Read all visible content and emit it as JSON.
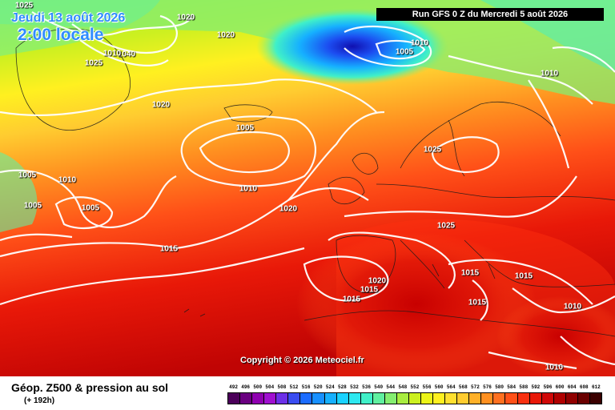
{
  "header": {
    "date": "Jeudi 13 août 2026",
    "local_time": "2:00 locale",
    "run": "Run GFS 0 Z du Mercredi 5 août 2026"
  },
  "copyright": "Copyright © 2026 Meteociel.fr",
  "footer": {
    "title": "Géop. Z500 & pression au sol",
    "forecast_hour": "(+ 192h)"
  },
  "isobar_labels": [
    {
      "text": "1025"
    },
    {
      "text": "1020"
    },
    {
      "text": "1020"
    },
    {
      "text": "1025"
    },
    {
      "text": "1040"
    },
    {
      "text": "1020"
    },
    {
      "text": "1010"
    },
    {
      "text": "1005"
    },
    {
      "text": "1010"
    },
    {
      "text": "1005"
    },
    {
      "text": "1010"
    },
    {
      "text": "1025"
    },
    {
      "text": "1005"
    },
    {
      "text": "1010"
    },
    {
      "text": "1005"
    },
    {
      "text": "1010"
    },
    {
      "text": "1005"
    },
    {
      "text": "1020"
    },
    {
      "text": "1025"
    },
    {
      "text": "1015"
    },
    {
      "text": "1020"
    },
    {
      "text": "1015"
    },
    {
      "text": "1015"
    },
    {
      "text": "1015"
    },
    {
      "text": "1015"
    },
    {
      "text": "1015"
    },
    {
      "text": "1010"
    },
    {
      "text": "1010"
    }
  ],
  "scale": {
    "labels": [
      "492",
      "496",
      "500",
      "504",
      "508",
      "512",
      "516",
      "520",
      "524",
      "528",
      "532",
      "536",
      "540",
      "544",
      "548",
      "552",
      "556",
      "560",
      "564",
      "568",
      "572",
      "576",
      "580",
      "584",
      "588",
      "592",
      "596",
      "600",
      "604",
      "608",
      "612"
    ],
    "colors": [
      "#4b0059",
      "#6a0080",
      "#8f00b0",
      "#a010d0",
      "#6c30e8",
      "#3a4cf0",
      "#1c6cff",
      "#1890ff",
      "#16b0ff",
      "#1ad2ff",
      "#2ee8f0",
      "#40f0c8",
      "#60f0a0",
      "#84ee70",
      "#a8ec40",
      "#ccf020",
      "#ecf418",
      "#fff020",
      "#ffe030",
      "#ffcc30",
      "#ffb028",
      "#ff9020",
      "#ff7020",
      "#ff5018",
      "#f83010",
      "#e81808",
      "#d00808",
      "#b00000",
      "#900000",
      "#6a0000",
      "#3a0000"
    ]
  }
}
